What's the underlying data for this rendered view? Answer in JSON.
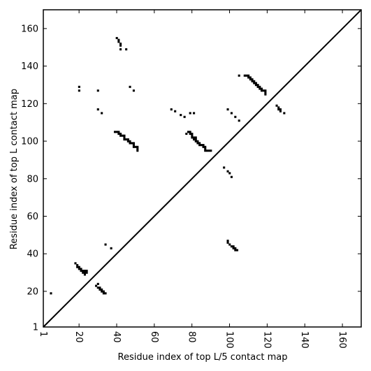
{
  "chart_data": {
    "type": "heatmap",
    "title": "",
    "xlabel": "Residue index of top L/5 contact map",
    "ylabel": "Residue index of top L contact map",
    "xlim": [
      1,
      170
    ],
    "ylim": [
      1,
      170
    ],
    "x_ticks": [
      "1",
      "20",
      "40",
      "60",
      "80",
      "100",
      "120",
      "140",
      "160"
    ],
    "y_ticks": [
      "1",
      "20",
      "40",
      "60",
      "80",
      "100",
      "120",
      "140",
      "160"
    ],
    "diagonal": true,
    "grid": false,
    "mark_color": "#000000",
    "upper_contacts": [
      [
        40,
        155
      ],
      [
        41,
        154
      ],
      [
        41,
        153
      ],
      [
        42,
        152
      ],
      [
        42,
        151
      ],
      [
        42,
        149
      ],
      [
        45,
        149
      ],
      [
        20,
        129
      ],
      [
        20,
        127
      ],
      [
        30,
        127
      ],
      [
        47,
        129
      ],
      [
        49,
        127
      ],
      [
        30,
        117
      ],
      [
        32,
        115
      ],
      [
        39,
        105
      ],
      [
        40,
        105
      ],
      [
        41,
        105
      ],
      [
        41,
        104
      ],
      [
        42,
        104
      ],
      [
        42,
        103
      ],
      [
        43,
        103
      ],
      [
        44,
        103
      ],
      [
        44,
        102
      ],
      [
        44,
        101
      ],
      [
        45,
        101
      ],
      [
        46,
        101
      ],
      [
        46,
        100
      ],
      [
        47,
        100
      ],
      [
        47,
        99
      ],
      [
        48,
        99
      ],
      [
        49,
        99
      ],
      [
        49,
        98
      ],
      [
        49,
        97
      ],
      [
        50,
        97
      ],
      [
        51,
        97
      ],
      [
        51,
        96
      ],
      [
        51,
        95
      ],
      [
        69,
        117
      ],
      [
        71,
        116
      ],
      [
        74,
        114
      ],
      [
        76,
        113
      ],
      [
        79,
        115
      ],
      [
        81,
        115
      ],
      [
        77,
        104
      ],
      [
        78,
        105
      ],
      [
        79,
        105
      ],
      [
        79,
        104
      ],
      [
        80,
        104
      ],
      [
        80,
        103
      ],
      [
        80,
        102
      ],
      [
        81,
        102
      ],
      [
        81,
        101
      ],
      [
        82,
        101
      ],
      [
        82,
        102
      ],
      [
        82,
        100
      ],
      [
        83,
        100
      ],
      [
        83,
        99
      ],
      [
        84,
        99
      ],
      [
        84,
        98
      ],
      [
        85,
        98
      ],
      [
        86,
        98
      ],
      [
        86,
        97
      ],
      [
        87,
        97
      ],
      [
        87,
        96
      ],
      [
        87,
        95
      ],
      [
        88,
        95
      ],
      [
        89,
        95
      ],
      [
        90,
        95
      ],
      [
        99,
        117
      ],
      [
        101,
        115
      ],
      [
        103,
        113
      ],
      [
        105,
        111
      ],
      [
        105,
        135
      ],
      [
        108,
        135
      ],
      [
        109,
        135
      ],
      [
        110,
        135
      ],
      [
        110,
        134
      ],
      [
        111,
        134
      ],
      [
        111,
        133
      ],
      [
        112,
        133
      ],
      [
        112,
        132
      ],
      [
        113,
        132
      ],
      [
        113,
        131
      ],
      [
        114,
        131
      ],
      [
        114,
        130
      ],
      [
        115,
        130
      ],
      [
        115,
        129
      ],
      [
        116,
        129
      ],
      [
        116,
        128
      ],
      [
        117,
        128
      ],
      [
        117,
        127
      ],
      [
        118,
        127
      ],
      [
        119,
        127
      ],
      [
        119,
        126
      ],
      [
        119,
        125
      ],
      [
        125,
        119
      ],
      [
        126,
        118
      ],
      [
        126,
        117
      ],
      [
        127,
        117
      ],
      [
        127,
        116
      ],
      [
        129,
        115
      ],
      [
        97,
        86
      ],
      [
        99,
        84
      ],
      [
        100,
        83
      ],
      [
        101,
        81
      ]
    ],
    "lower_contacts": [
      [
        5,
        19
      ],
      [
        18,
        35
      ],
      [
        19,
        34
      ],
      [
        19,
        33
      ],
      [
        20,
        33
      ],
      [
        20,
        32
      ],
      [
        21,
        32
      ],
      [
        21,
        31
      ],
      [
        22,
        31
      ],
      [
        22,
        30
      ],
      [
        23,
        31
      ],
      [
        23,
        30
      ],
      [
        23,
        29
      ],
      [
        24,
        30
      ],
      [
        24,
        31
      ],
      [
        29,
        23
      ],
      [
        30,
        22
      ],
      [
        30,
        24
      ],
      [
        31,
        22
      ],
      [
        31,
        21
      ],
      [
        32,
        21
      ],
      [
        32,
        20
      ],
      [
        33,
        20
      ],
      [
        33,
        19
      ],
      [
        34,
        19
      ],
      [
        34,
        45
      ],
      [
        37,
        43
      ],
      [
        99,
        47
      ],
      [
        99,
        46
      ],
      [
        100,
        45
      ],
      [
        101,
        44
      ],
      [
        102,
        44
      ],
      [
        102,
        43
      ],
      [
        103,
        43
      ],
      [
        103,
        42
      ],
      [
        104,
        42
      ]
    ]
  }
}
